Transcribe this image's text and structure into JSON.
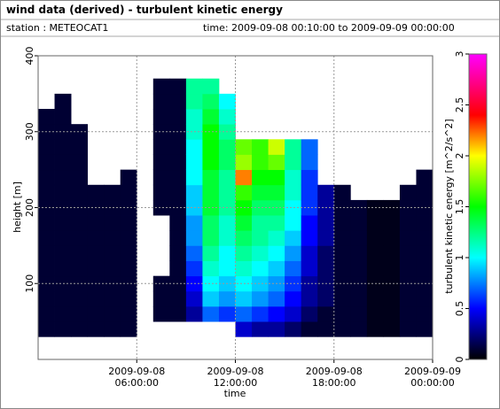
{
  "chart_data": {
    "type": "heatmap",
    "title": "wind data (derived) - turbulent kinetic energy",
    "subtitle": [
      "station : METEOCAT1",
      "time: 2009-09-08 00:10:00 to 2009-09-09 00:00:00"
    ],
    "xlabel": "time",
    "ylabel": "height [m]",
    "colorbar_label": "turbulent kinetic energy [m^2/s^2]",
    "x": [
      "2009-09-08 00:00:00",
      "2009-09-08 01:00:00",
      "2009-09-08 02:00:00",
      "2009-09-08 03:00:00",
      "2009-09-08 04:00:00",
      "2009-09-08 05:00:00",
      "2009-09-08 06:00:00",
      "2009-09-08 07:00:00",
      "2009-09-08 08:00:00",
      "2009-09-08 09:00:00",
      "2009-09-08 10:00:00",
      "2009-09-08 11:00:00",
      "2009-09-08 12:00:00",
      "2009-09-08 13:00:00",
      "2009-09-08 14:00:00",
      "2009-09-08 15:00:00",
      "2009-09-08 16:00:00",
      "2009-09-08 17:00:00",
      "2009-09-08 18:00:00",
      "2009-09-08 19:00:00",
      "2009-09-08 20:00:00",
      "2009-09-08 21:00:00",
      "2009-09-08 22:00:00",
      "2009-09-08 23:00:00"
    ],
    "y": [
      40,
      60,
      80,
      100,
      120,
      140,
      160,
      180,
      200,
      220,
      240,
      260,
      280,
      300,
      320,
      340,
      360
    ],
    "z": [
      [
        0.1,
        0.1,
        0.1,
        0.1,
        0.1,
        0.1,
        0.1,
        0.1,
        0.1,
        0.1,
        0.1,
        0.1,
        0.1,
        0.1,
        0.1,
        null,
        null
      ],
      [
        0.1,
        0.1,
        0.1,
        0.1,
        0.1,
        0.1,
        0.1,
        0.1,
        0.1,
        0.1,
        0.1,
        0.1,
        0.1,
        0.1,
        0.1,
        0.1,
        null
      ],
      [
        0.1,
        0.1,
        0.1,
        0.1,
        0.1,
        0.1,
        0.1,
        0.1,
        0.1,
        0.1,
        0.1,
        0.1,
        0.1,
        0.1,
        null,
        null,
        null
      ],
      [
        0.1,
        0.1,
        0.1,
        0.1,
        0.1,
        0.1,
        0.1,
        0.1,
        0.1,
        0.1,
        null,
        null,
        null,
        null,
        null,
        null,
        null
      ],
      [
        0.1,
        0.1,
        0.1,
        0.1,
        0.1,
        0.1,
        0.1,
        0.1,
        0.1,
        0.1,
        null,
        null,
        null,
        null,
        null,
        null,
        null
      ],
      [
        0.1,
        0.1,
        0.1,
        0.1,
        0.1,
        0.1,
        0.1,
        0.1,
        0.1,
        0.1,
        0.1,
        null,
        null,
        null,
        null,
        null,
        null
      ],
      [
        null,
        null,
        null,
        null,
        null,
        null,
        null,
        null,
        null,
        null,
        null,
        null,
        null,
        null,
        null,
        null,
        null
      ],
      [
        null,
        0.1,
        0.1,
        0.1,
        null,
        null,
        null,
        null,
        0.1,
        0.1,
        0.1,
        0.1,
        0.1,
        0.1,
        0.1,
        0.1,
        0.1
      ],
      [
        null,
        0.1,
        0.1,
        0.1,
        0.1,
        0.1,
        0.1,
        0.1,
        0.1,
        0.1,
        0.1,
        0.1,
        0.1,
        0.1,
        0.1,
        0.1,
        0.1
      ],
      [
        null,
        0.3,
        0.4,
        0.5,
        0.6,
        0.7,
        0.8,
        0.8,
        0.9,
        0.9,
        1.0,
        1.0,
        1.0,
        1.1,
        1.1,
        1.2,
        1.2
      ],
      [
        null,
        0.7,
        0.9,
        1.0,
        1.1,
        1.2,
        1.3,
        1.3,
        1.4,
        1.4,
        1.4,
        1.5,
        1.5,
        1.5,
        1.4,
        1.3,
        1.2
      ],
      [
        null,
        0.6,
        0.8,
        0.9,
        1.0,
        1.0,
        1.1,
        1.1,
        1.2,
        1.2,
        1.2,
        1.3,
        1.3,
        1.2,
        1.1,
        1.0,
        null
      ],
      [
        0.4,
        0.7,
        0.9,
        1.0,
        1.1,
        1.2,
        1.3,
        1.4,
        1.5,
        1.6,
        2.2,
        1.8,
        1.7,
        null,
        null,
        null,
        null
      ],
      [
        0.3,
        0.6,
        0.8,
        0.9,
        1.0,
        1.1,
        1.2,
        1.2,
        1.3,
        1.4,
        1.5,
        1.6,
        1.6,
        null,
        null,
        null,
        null
      ],
      [
        0.3,
        0.5,
        0.7,
        0.8,
        0.9,
        1.0,
        1.1,
        1.2,
        1.3,
        1.4,
        1.5,
        1.7,
        1.9,
        null,
        null,
        null,
        null
      ],
      [
        0.2,
        0.4,
        0.5,
        0.6,
        0.7,
        0.8,
        0.9,
        1.0,
        1.0,
        1.1,
        1.1,
        1.2,
        1.2,
        null,
        null,
        null,
        null
      ],
      [
        0.1,
        0.2,
        0.3,
        0.3,
        0.4,
        0.4,
        0.5,
        0.5,
        0.6,
        0.6,
        0.6,
        0.7,
        0.7,
        null,
        null,
        null,
        null
      ],
      [
        0.1,
        0.1,
        0.2,
        0.2,
        0.2,
        0.2,
        0.3,
        0.3,
        0.3,
        0.3,
        null,
        null,
        null,
        null,
        null,
        null,
        null
      ],
      [
        0.1,
        0.1,
        0.1,
        0.1,
        0.1,
        0.1,
        0.1,
        0.1,
        0.1,
        0.1,
        null,
        null,
        null,
        null,
        null,
        null,
        null
      ],
      [
        0.1,
        0.1,
        0.1,
        0.1,
        0.1,
        0.1,
        0.1,
        0.1,
        0.1,
        null,
        null,
        null,
        null,
        null,
        null,
        null,
        null
      ],
      [
        0.05,
        0.05,
        0.05,
        0.05,
        0.05,
        0.05,
        0.05,
        0.05,
        0.05,
        null,
        null,
        null,
        null,
        null,
        null,
        null,
        null
      ],
      [
        0.05,
        0.05,
        0.05,
        0.05,
        0.05,
        0.05,
        0.05,
        0.05,
        0.05,
        null,
        null,
        null,
        null,
        null,
        null,
        null,
        null
      ],
      [
        0.1,
        0.1,
        0.1,
        0.1,
        0.1,
        0.1,
        0.1,
        0.1,
        0.1,
        0.1,
        null,
        null,
        null,
        null,
        null,
        null,
        null
      ],
      [
        0.1,
        0.1,
        0.1,
        0.1,
        0.1,
        0.1,
        0.1,
        0.1,
        0.1,
        0.1,
        0.1,
        null,
        null,
        null,
        null,
        null,
        null
      ]
    ],
    "xlim": [
      "2009-09-08 00:00:00",
      "2009-09-09 00:00:00"
    ],
    "xticks": [
      "2009-09-08 06:00:00",
      "2009-09-08 12:00:00",
      "2009-09-08 18:00:00",
      "2009-09-09 00:00:00"
    ],
    "ylim": [
      0,
      400
    ],
    "yticks": [
      100,
      200,
      300,
      400
    ],
    "clim": [
      0,
      3
    ],
    "cticks": [
      0,
      0.5,
      1,
      1.5,
      2,
      2.5,
      3
    ],
    "colorscale": [
      [
        0,
        "#000000"
      ],
      [
        0.5,
        "#0000ff"
      ],
      [
        1,
        "#00ffff"
      ],
      [
        1.5,
        "#00ff00"
      ],
      [
        2,
        "#ffff00"
      ],
      [
        2.4,
        "#ff0000"
      ],
      [
        3,
        "#ff00ff"
      ]
    ],
    "grid": true
  }
}
